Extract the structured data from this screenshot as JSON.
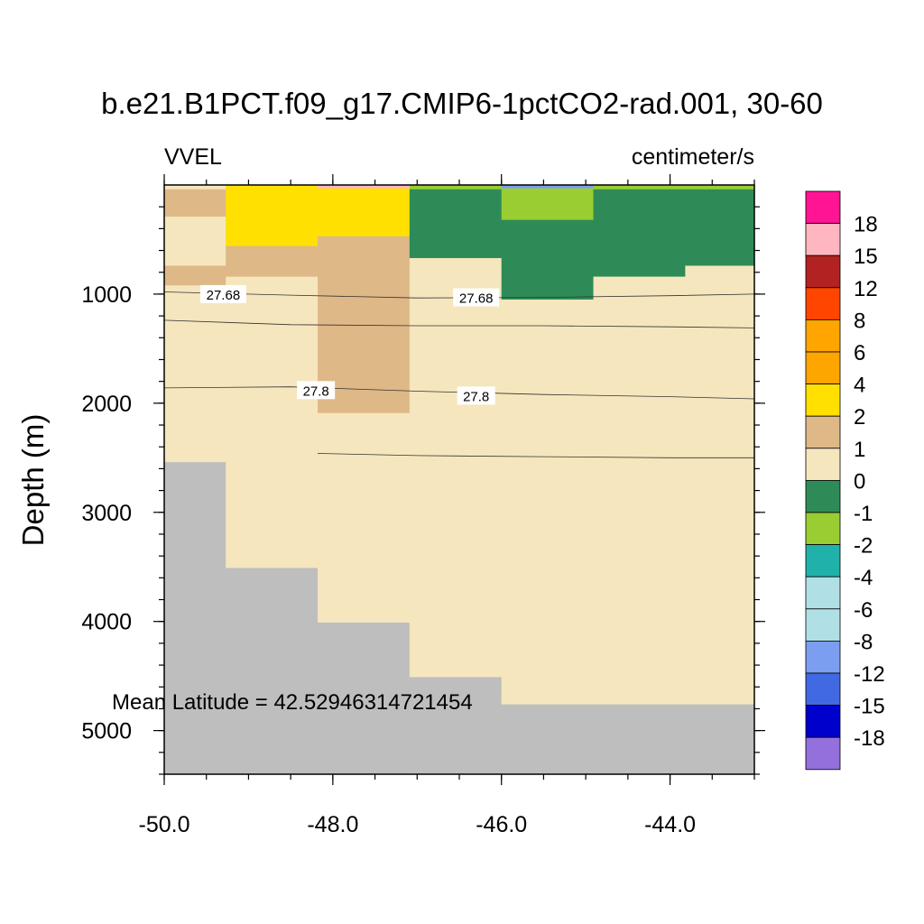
{
  "chart_data": {
    "type": "heatmap",
    "title": "b.e21.B1PCT.f09_g17.CMIP6-1pctCO2-rad.001, 30-60",
    "left_label": "VVEL",
    "right_label": "centimeter/s",
    "ylabel": "Depth (m)",
    "xlabel": "",
    "xlim": [
      -50.0,
      -43.0
    ],
    "ylim": [
      5400,
      0
    ],
    "y_reversed": true,
    "x_ticks": [
      {
        "value": -50.0,
        "label": "-50.0"
      },
      {
        "value": -48.0,
        "label": "-48.0"
      },
      {
        "value": -46.0,
        "label": "-46.0"
      },
      {
        "value": -44.0,
        "label": "-44.0"
      }
    ],
    "y_ticks": [
      {
        "value": 1000,
        "label": "1000"
      },
      {
        "value": 2000,
        "label": "2000"
      },
      {
        "value": 3000,
        "label": "3000"
      },
      {
        "value": 4000,
        "label": "4000"
      },
      {
        "value": 5000,
        "label": "5000"
      }
    ],
    "annotation": "Mean Latitude = 42.52946314721454",
    "colorbar": {
      "labels": [
        "18",
        "15",
        "12",
        "8",
        "6",
        "4",
        "2",
        "1",
        "0",
        "-1",
        "-2",
        "-4",
        "-6",
        "-8",
        "-12",
        "-15",
        "-18"
      ],
      "colors": [
        "#ff1493",
        "#ffb6c1",
        "#b22222",
        "#ff4500",
        "#ffa500",
        "#ffa500",
        "#ffe000",
        "#deb887",
        "#f5e6be",
        "#2e8b57",
        "#9acd32",
        "#20b2aa",
        "#b0e0e6",
        "#b0e0e6",
        "#7b9ef0",
        "#4169e1",
        "#0000cd",
        "#9370db"
      ]
    },
    "land_color": "#bebebe",
    "cells": [
      {
        "x0": -50.0,
        "x1": -49.27,
        "y0": 0,
        "y1": 40,
        "color": "#f5e6be"
      },
      {
        "x0": -50.0,
        "x1": -49.27,
        "y0": 40,
        "y1": 290,
        "color": "#deb887"
      },
      {
        "x0": -50.0,
        "x1": -49.27,
        "y0": 290,
        "y1": 740,
        "color": "#f5e6be"
      },
      {
        "x0": -50.0,
        "x1": -49.27,
        "y0": 740,
        "y1": 920,
        "color": "#deb887"
      },
      {
        "x0": -50.0,
        "x1": -49.27,
        "y0": 920,
        "y1": 2540,
        "color": "#f5e6be"
      },
      {
        "x0": -50.0,
        "x1": -49.27,
        "y0": 2540,
        "y1": 5400,
        "color": "#bebebe"
      },
      {
        "x0": -49.27,
        "x1": -48.18,
        "y0": 0,
        "y1": 560,
        "color": "#ffe000"
      },
      {
        "x0": -49.27,
        "x1": -48.18,
        "y0": 560,
        "y1": 840,
        "color": "#deb887"
      },
      {
        "x0": -49.27,
        "x1": -48.18,
        "y0": 840,
        "y1": 3510,
        "color": "#f5e6be"
      },
      {
        "x0": -49.27,
        "x1": -48.18,
        "y0": 3510,
        "y1": 5400,
        "color": "#bebebe"
      },
      {
        "x0": -48.18,
        "x1": -47.09,
        "y0": 0,
        "y1": 30,
        "color": "#ffb6c1"
      },
      {
        "x0": -48.18,
        "x1": -47.09,
        "y0": 30,
        "y1": 470,
        "color": "#ffe000"
      },
      {
        "x0": -48.18,
        "x1": -47.09,
        "y0": 470,
        "y1": 2090,
        "color": "#deb887"
      },
      {
        "x0": -48.18,
        "x1": -47.09,
        "y0": 2090,
        "y1": 4010,
        "color": "#f5e6be"
      },
      {
        "x0": -48.18,
        "x1": -47.09,
        "y0": 4010,
        "y1": 5400,
        "color": "#bebebe"
      },
      {
        "x0": -47.09,
        "x1": -46.0,
        "y0": 0,
        "y1": 40,
        "color": "#9acd32"
      },
      {
        "x0": -47.09,
        "x1": -46.0,
        "y0": 40,
        "y1": 670,
        "color": "#2e8b57"
      },
      {
        "x0": -47.09,
        "x1": -46.0,
        "y0": 670,
        "y1": 4510,
        "color": "#f5e6be"
      },
      {
        "x0": -47.09,
        "x1": -46.0,
        "y0": 4510,
        "y1": 5400,
        "color": "#bebebe"
      },
      {
        "x0": -46.0,
        "x1": -44.91,
        "y0": 0,
        "y1": 30,
        "color": "#7b9ef0"
      },
      {
        "x0": -46.0,
        "x1": -44.91,
        "y0": 30,
        "y1": 320,
        "color": "#9acd32"
      },
      {
        "x0": -46.0,
        "x1": -44.91,
        "y0": 320,
        "y1": 1050,
        "color": "#2e8b57"
      },
      {
        "x0": -46.0,
        "x1": -44.91,
        "y0": 1050,
        "y1": 4760,
        "color": "#f5e6be"
      },
      {
        "x0": -46.0,
        "x1": -44.91,
        "y0": 4760,
        "y1": 5400,
        "color": "#bebebe"
      },
      {
        "x0": -44.91,
        "x1": -43.82,
        "y0": 0,
        "y1": 40,
        "color": "#9acd32"
      },
      {
        "x0": -44.91,
        "x1": -43.82,
        "y0": 40,
        "y1": 840,
        "color": "#2e8b57"
      },
      {
        "x0": -44.91,
        "x1": -43.82,
        "y0": 840,
        "y1": 4760,
        "color": "#f5e6be"
      },
      {
        "x0": -44.91,
        "x1": -43.82,
        "y0": 4760,
        "y1": 5400,
        "color": "#bebebe"
      },
      {
        "x0": -43.82,
        "x1": -43.0,
        "y0": 0,
        "y1": 40,
        "color": "#9acd32"
      },
      {
        "x0": -43.82,
        "x1": -43.0,
        "y0": 40,
        "y1": 740,
        "color": "#2e8b57"
      },
      {
        "x0": -43.82,
        "x1": -43.0,
        "y0": 740,
        "y1": 4760,
        "color": "#f5e6be"
      },
      {
        "x0": -43.82,
        "x1": -43.0,
        "y0": 4760,
        "y1": 5400,
        "color": "#bebebe"
      }
    ],
    "contours": [
      {
        "points": [
          [
            -50.0,
            980
          ],
          [
            -48.5,
            1010
          ],
          [
            -47.0,
            1035
          ],
          [
            -45.5,
            1030
          ],
          [
            -44.0,
            1015
          ],
          [
            -43.0,
            1000
          ]
        ]
      },
      {
        "points": [
          [
            -50.0,
            1240
          ],
          [
            -48.5,
            1280
          ],
          [
            -47.0,
            1290
          ],
          [
            -45.5,
            1290
          ],
          [
            -44.0,
            1300
          ],
          [
            -43.0,
            1310
          ]
        ]
      },
      {
        "points": [
          [
            -50.0,
            1860
          ],
          [
            -48.5,
            1850
          ],
          [
            -47.0,
            1890
          ],
          [
            -45.5,
            1920
          ],
          [
            -44.0,
            1940
          ],
          [
            -43.0,
            1960
          ]
        ]
      },
      {
        "points": [
          [
            -48.18,
            2460
          ],
          [
            -47.0,
            2480
          ],
          [
            -45.5,
            2490
          ],
          [
            -44.0,
            2500
          ],
          [
            -43.0,
            2500
          ]
        ]
      }
    ],
    "contour_labels": [
      {
        "text": "27.68",
        "x": -49.3,
        "y": 1000
      },
      {
        "text": "27.68",
        "x": -46.3,
        "y": 1030
      },
      {
        "text": "27.8",
        "x": -48.2,
        "y": 1880
      },
      {
        "text": "27.8",
        "x": -46.3,
        "y": 1930
      }
    ]
  }
}
